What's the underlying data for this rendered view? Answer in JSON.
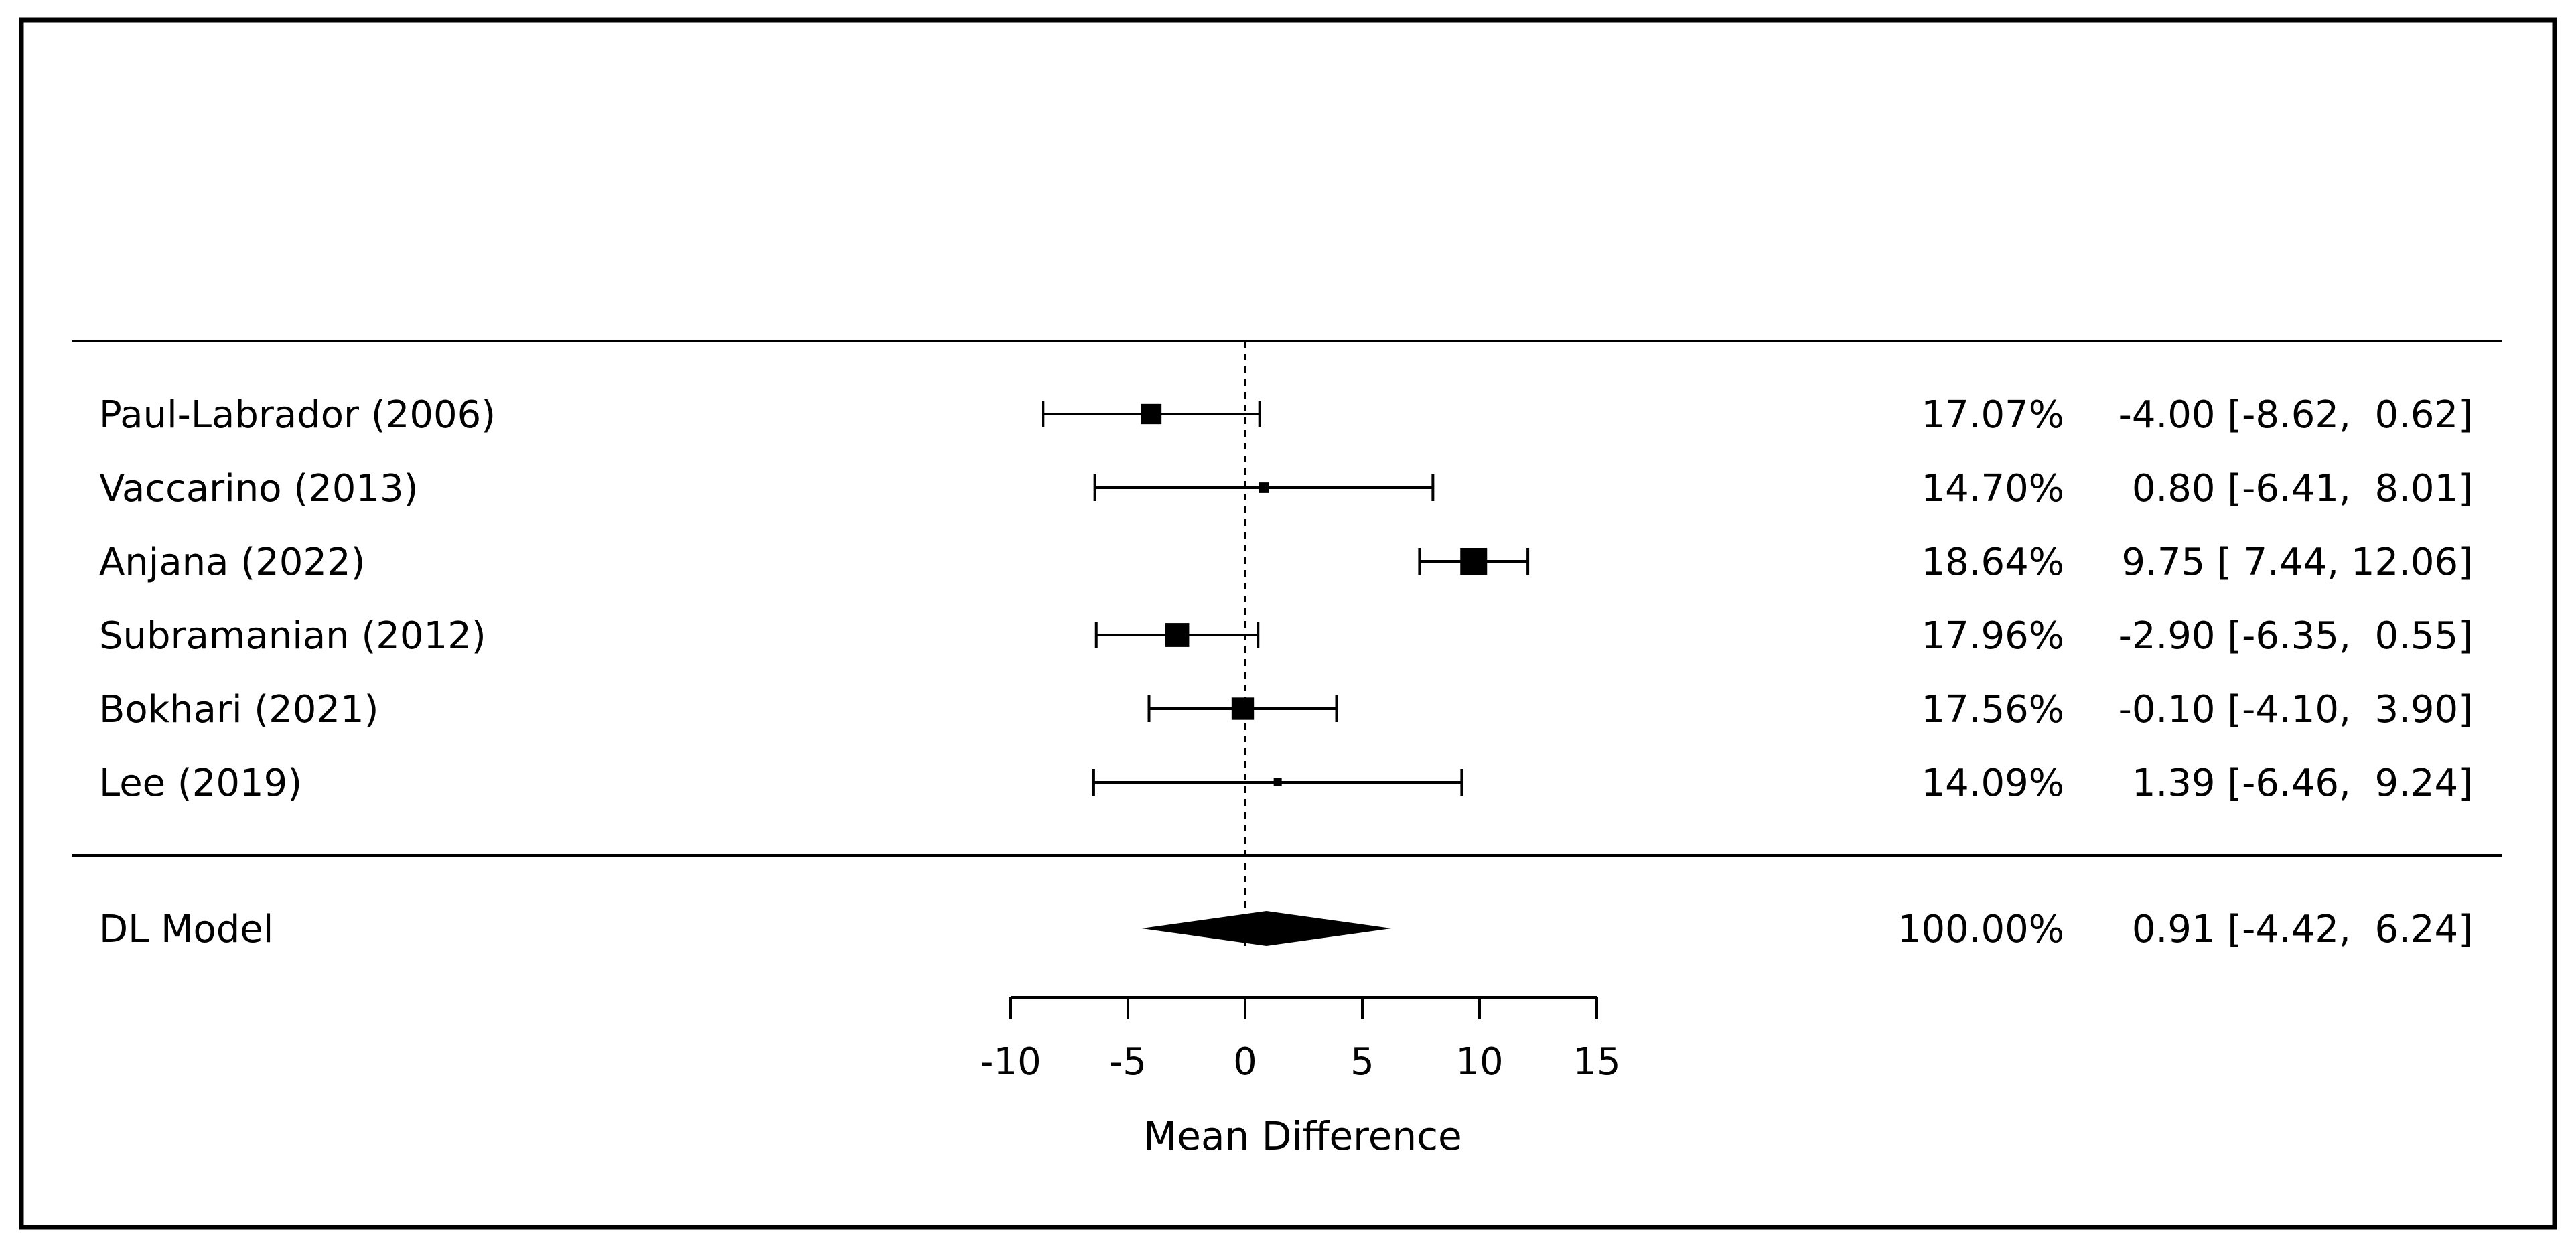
{
  "chart_data": {
    "type": "forest",
    "xlabel": "Mean Difference",
    "xlim": [
      -10,
      15
    ],
    "xticks": [
      -10,
      -5,
      0,
      5,
      10,
      15
    ],
    "xtick_labels": [
      "-10",
      "-5",
      "0",
      "5",
      "10",
      "15"
    ],
    "null_line": 0,
    "studies": [
      {
        "label": "Paul-Labrador (2006)",
        "estimate": -4.0,
        "ci_low": -8.62,
        "ci_high": 0.62,
        "weight": 17.07,
        "weight_text": "17.07%",
        "ci_text": "-4.00 [-8.62,  0.62]"
      },
      {
        "label": "Vaccarino (2013)",
        "estimate": 0.8,
        "ci_low": -6.41,
        "ci_high": 8.01,
        "weight": 14.7,
        "weight_text": "14.70%",
        "ci_text": "0.80 [-6.41,  8.01]"
      },
      {
        "label": "Anjana (2022)",
        "estimate": 9.75,
        "ci_low": 7.44,
        "ci_high": 12.06,
        "weight": 18.64,
        "weight_text": "18.64%",
        "ci_text": "9.75 [ 7.44, 12.06]"
      },
      {
        "label": "Subramanian (2012)",
        "estimate": -2.9,
        "ci_low": -6.35,
        "ci_high": 0.55,
        "weight": 17.96,
        "weight_text": "17.96%",
        "ci_text": "-2.90 [-6.35,  0.55]"
      },
      {
        "label": "Bokhari (2021)",
        "estimate": -0.1,
        "ci_low": -4.1,
        "ci_high": 3.9,
        "weight": 17.56,
        "weight_text": "17.56%",
        "ci_text": "-0.10 [-4.10,  3.90]"
      },
      {
        "label": "Lee (2019)",
        "estimate": 1.39,
        "ci_low": -6.46,
        "ci_high": 9.24,
        "weight": 14.09,
        "weight_text": "14.09%",
        "ci_text": "1.39 [-6.46,  9.24]"
      }
    ],
    "summary": {
      "label": "DL Model",
      "estimate": 0.91,
      "ci_low": -4.42,
      "ci_high": 6.24,
      "weight_text": "100.00%",
      "ci_text": "0.91 [-4.42,  6.24]"
    }
  }
}
